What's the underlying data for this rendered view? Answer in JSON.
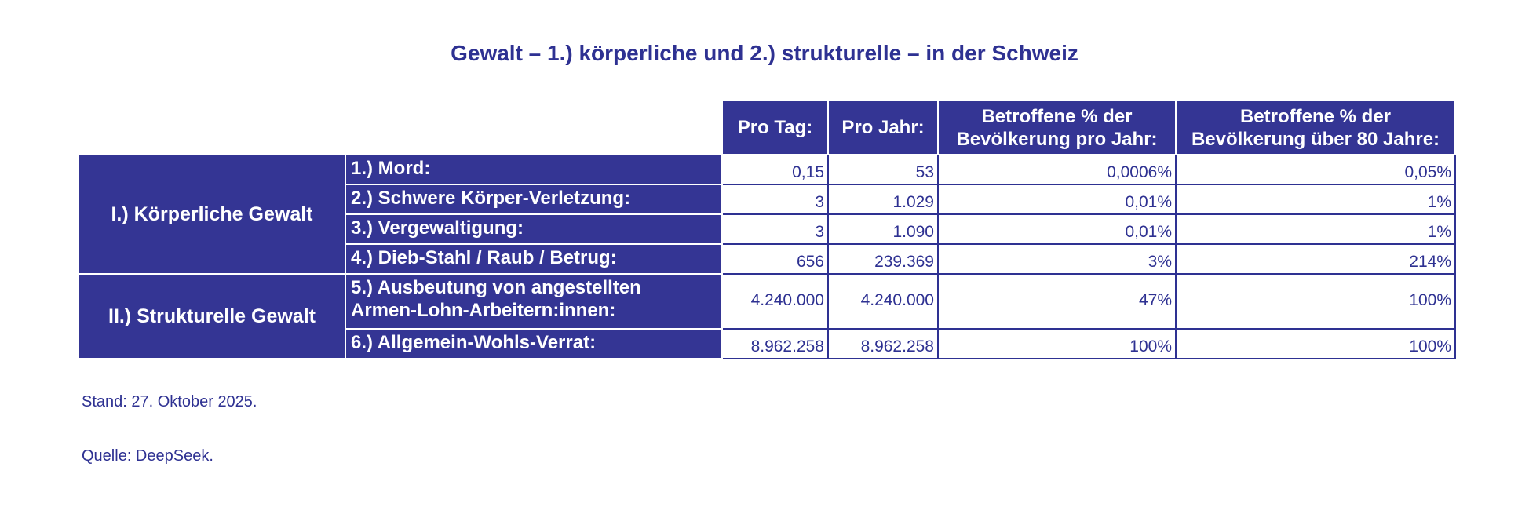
{
  "title": "Gewalt – 1.) körperliche und 2.) strukturelle – in der Schweiz",
  "headers": {
    "pro_tag": "Pro Tag:",
    "pro_jahr": "Pro Jahr:",
    "betroffene_jahr_line1": "Betroffene % der",
    "betroffene_jahr_line2": "Bevölkerung pro Jahr:",
    "betroffene_80_line1": "Betroffene % der",
    "betroffene_80_line2": "Bevölkerung über 80 Jahre:"
  },
  "groups": [
    {
      "label": "I.) Körperliche Gewalt"
    },
    {
      "label": "II.) Strukturelle Gewalt"
    }
  ],
  "rows": [
    {
      "label": "1.) Mord:",
      "pro_tag": "0,15",
      "pro_jahr": "53",
      "pct_jahr": "0,0006%",
      "pct_80": "0,05%"
    },
    {
      "label": "2.) Schwere Körper-Verletzung:",
      "pro_tag": "3",
      "pro_jahr": "1.029",
      "pct_jahr": "0,01%",
      "pct_80": "1%"
    },
    {
      "label": "3.) Vergewaltigung:",
      "pro_tag": "3",
      "pro_jahr": "1.090",
      "pct_jahr": "0,01%",
      "pct_80": "1%"
    },
    {
      "label": "4.) Dieb-Stahl / Raub / Betrug:",
      "pro_tag": "656",
      "pro_jahr": "239.369",
      "pct_jahr": "3%",
      "pct_80": "214%"
    },
    {
      "label_line1": "5.) Ausbeutung von angestellten",
      "label_line2": "Armen-Lohn-Arbeitern:innen:",
      "pro_tag": "4.240.000",
      "pro_jahr": "4.240.000",
      "pct_jahr": "47%",
      "pct_80": "100%"
    },
    {
      "label": "6.) Allgemein-Wohls-Verrat:",
      "pro_tag": "8.962.258",
      "pro_jahr": "8.962.258",
      "pct_jahr": "100%",
      "pct_80": "100%"
    }
  ],
  "footer": {
    "stand": "Stand: 27. Oktober 2025.",
    "quelle": "Quelle: DeepSeek."
  },
  "colors": {
    "header_bg": "#343594",
    "text": "#2e3192",
    "header_text": "#ffffff"
  }
}
